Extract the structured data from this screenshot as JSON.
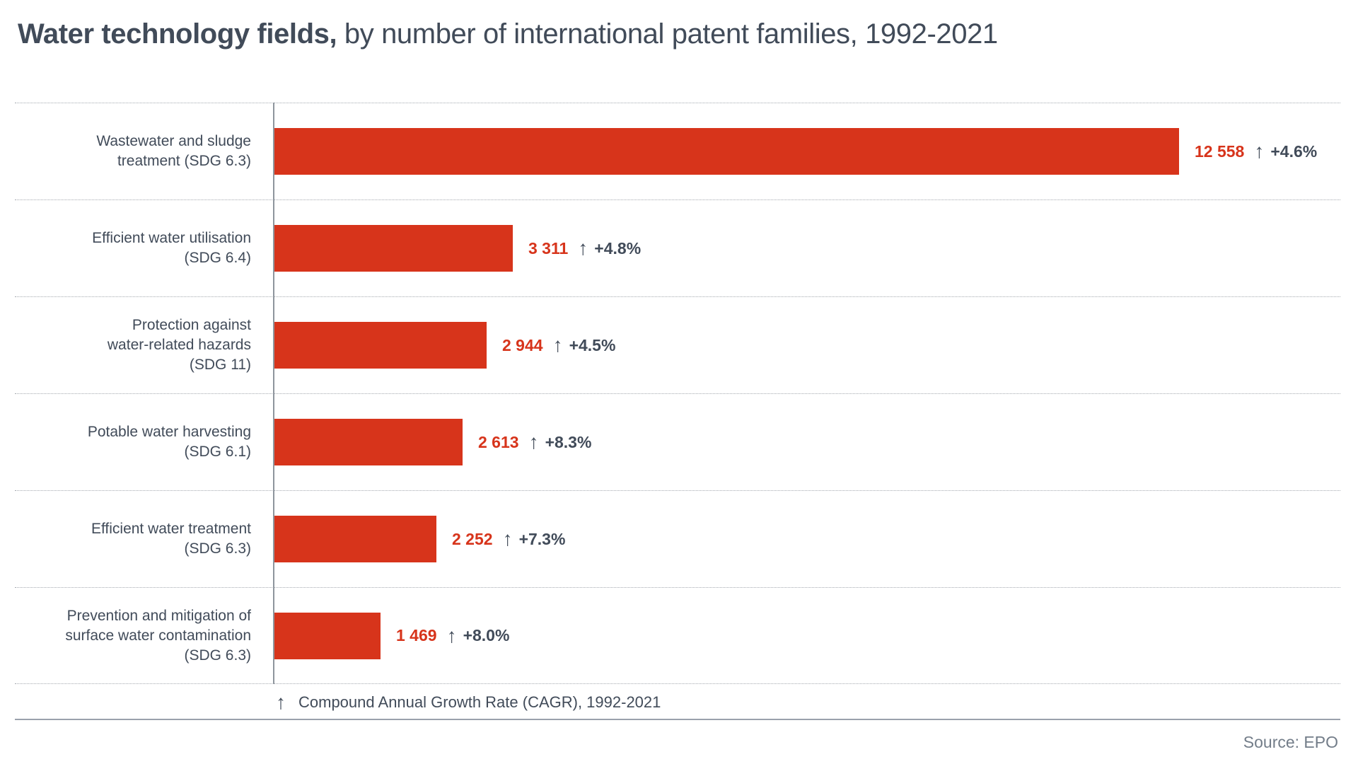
{
  "title": {
    "bold": "Water technology fields,",
    "regular": " by number of international patent families, 1992-2021"
  },
  "colors": {
    "bar_red": "#d7341b",
    "dark_text": "#414b59",
    "source_gray": "#737d89",
    "axis_gray": "#8e959d"
  },
  "legend": {
    "arrow_icon": "↑",
    "text": "Compound Annual Growth Rate (CAGR), 1992-2021"
  },
  "source_label": "Source: EPO",
  "chart_data": {
    "type": "bar",
    "orientation": "horizontal",
    "title": "Water technology fields, by number of international patent families, 1992-2021",
    "xlabel": "Number of international patent families",
    "xlim": [
      0,
      12900
    ],
    "grid": false,
    "legend_position": "bottom",
    "categories": [
      "Wastewater and sludge treatment (SDG 6.3)",
      "Efficient water utilisation (SDG 6.4)",
      "Protection against water-related hazards (SDG 11)",
      "Potable water harvesting (SDG 6.1)",
      "Efficient water treatment (SDG 6.3)",
      "Prevention and mitigation of surface water contamination (SDG 6.3)"
    ],
    "values": [
      12558,
      3311,
      2944,
      2613,
      2252,
      1469
    ],
    "cagr_percent": [
      4.6,
      4.8,
      4.5,
      8.3,
      7.3,
      8.0
    ],
    "rows": [
      {
        "label_lines": [
          "Wastewater and sludge",
          "treatment (SDG 6.3)"
        ],
        "value": 12558,
        "value_label": "12 558",
        "cagr_label": "+4.6%",
        "arrow": "↑"
      },
      {
        "label_lines": [
          "Efficient water utilisation",
          "(SDG 6.4)"
        ],
        "value": 3311,
        "value_label": "3 311",
        "cagr_label": "+4.8%",
        "arrow": "↑"
      },
      {
        "label_lines": [
          "Protection against",
          "water-related hazards",
          "(SDG 11)"
        ],
        "value": 2944,
        "value_label": "2 944",
        "cagr_label": "+4.5%",
        "arrow": "↑"
      },
      {
        "label_lines": [
          "Potable water harvesting",
          "(SDG 6.1)"
        ],
        "value": 2613,
        "value_label": "2 613",
        "cagr_label": "+8.3%",
        "arrow": "↑"
      },
      {
        "label_lines": [
          "Efficient water treatment",
          "(SDG 6.3)"
        ],
        "value": 2252,
        "value_label": "2 252",
        "cagr_label": "+7.3%",
        "arrow": "↑"
      },
      {
        "label_lines": [
          "Prevention and mitigation of",
          "surface water contamination",
          "(SDG 6.3)"
        ],
        "value": 1469,
        "value_label": "1 469",
        "cagr_label": "+8.0%",
        "arrow": "↑"
      }
    ]
  }
}
